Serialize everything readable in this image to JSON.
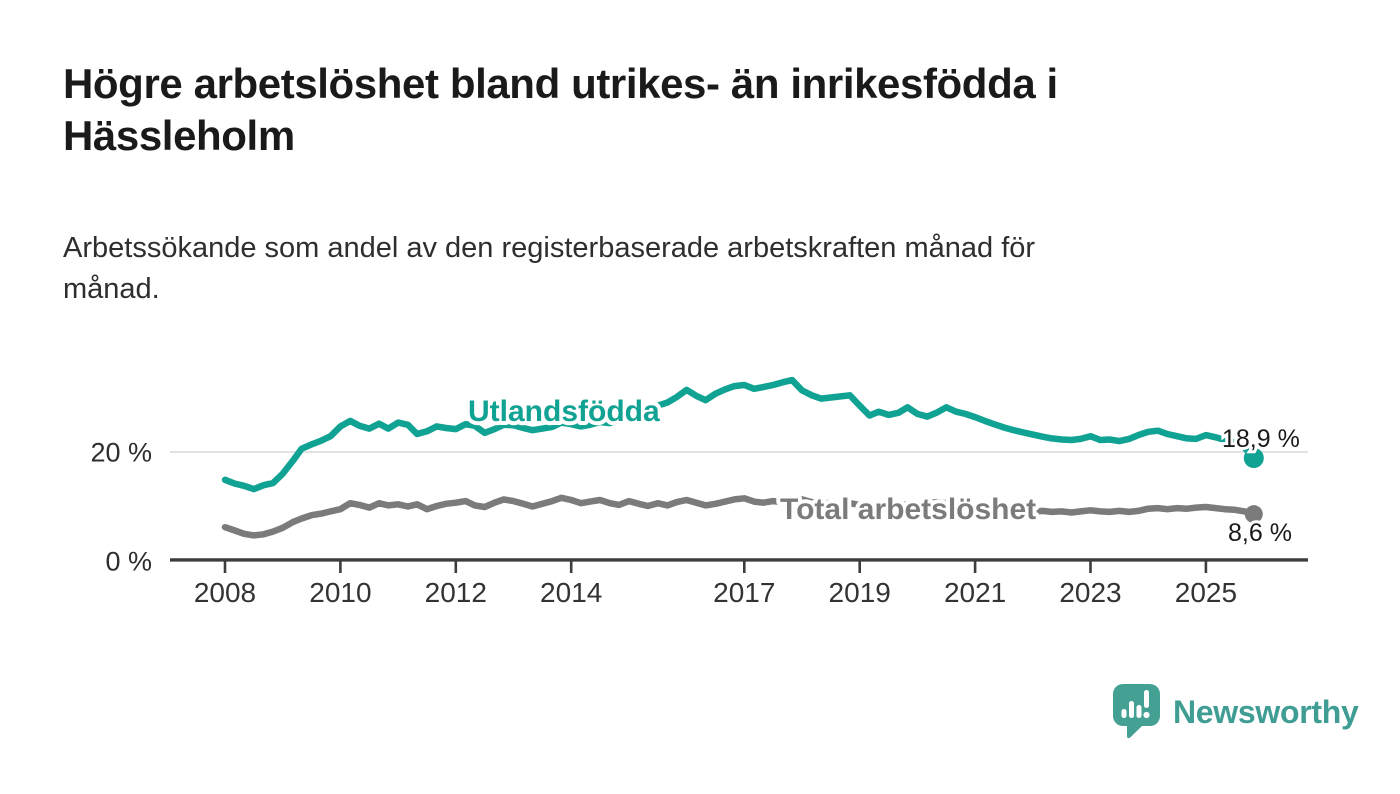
{
  "header": {
    "title": "Högre arbetslöshet bland utrikes- än inrikesfödda i Hässleholm",
    "subtitle": "Arbetssökande som andel av den registerbaserade arbetskraften månad för månad."
  },
  "footer": {
    "brand": "Newsworthy",
    "logo_icon": "bar-chart-speech-bubble-icon",
    "icon_color": "#45a094",
    "text_color": "#3f9d94"
  },
  "colors": {
    "series_foreign_born": "#10a292",
    "series_total": "#7b7b7b",
    "gridline": "#d9d9d9",
    "axis": "#3d3d3d",
    "tick_label": "#333333",
    "value_label": "#1a1a1a"
  },
  "chart_data": {
    "type": "line",
    "title": "Högre arbetslöshet bland utrikes- än inrikesfödda i Hässleholm",
    "subtitle": "Arbetssökande som andel av den registerbaserade arbetskraften månad för månad.",
    "unit": "%",
    "grid": {
      "y_gridlines": [
        20
      ]
    },
    "legend": "inline-series-labels",
    "x": {
      "range": [
        2008,
        2025.9
      ],
      "ticks": [
        2008,
        2010,
        2012,
        2014,
        2017,
        2019,
        2021,
        2023,
        2025
      ]
    },
    "y": {
      "range": [
        0,
        36
      ],
      "ticks": [
        {
          "value": 0,
          "label": "0 %"
        },
        {
          "value": 20,
          "label": "20 %"
        }
      ]
    },
    "series": [
      {
        "id": "utlandsfodda",
        "name": "Utlandsfödda",
        "color": "#10a292",
        "end_label": "18,9 %",
        "points": [
          [
            2008,
            14.9
          ],
          [
            2008.17,
            14.2
          ],
          [
            2008.33,
            13.8
          ],
          [
            2008.5,
            13.2
          ],
          [
            2008.67,
            13.9
          ],
          [
            2008.83,
            14.3
          ],
          [
            2009,
            16
          ],
          [
            2009.17,
            18.3
          ],
          [
            2009.33,
            20.6
          ],
          [
            2009.5,
            21.4
          ],
          [
            2009.67,
            22.1
          ],
          [
            2009.83,
            22.9
          ],
          [
            2010,
            24.7
          ],
          [
            2010.17,
            25.7
          ],
          [
            2010.33,
            24.8
          ],
          [
            2010.5,
            24.3
          ],
          [
            2010.67,
            25.2
          ],
          [
            2010.83,
            24.3
          ],
          [
            2011,
            25.4
          ],
          [
            2011.17,
            25
          ],
          [
            2011.33,
            23.3
          ],
          [
            2011.5,
            23.8
          ],
          [
            2011.67,
            24.7
          ],
          [
            2011.83,
            24.4
          ],
          [
            2012,
            24.2
          ],
          [
            2012.17,
            25.1
          ],
          [
            2012.33,
            24.8
          ],
          [
            2012.5,
            23.5
          ],
          [
            2012.67,
            24.2
          ],
          [
            2012.83,
            25
          ],
          [
            2013,
            24.9
          ],
          [
            2013.17,
            24.4
          ],
          [
            2013.33,
            24
          ],
          [
            2013.5,
            24.3
          ],
          [
            2013.67,
            24.6
          ],
          [
            2013.83,
            25.4
          ],
          [
            2014,
            25.1
          ],
          [
            2014.17,
            24.7
          ],
          [
            2014.33,
            25
          ],
          [
            2014.5,
            25.5
          ],
          [
            2014.67,
            25.3
          ],
          [
            2014.83,
            25.9
          ],
          [
            2015,
            26.6
          ],
          [
            2015.17,
            27.3
          ],
          [
            2015.33,
            27.9
          ],
          [
            2015.5,
            28.5
          ],
          [
            2015.67,
            29.1
          ],
          [
            2015.83,
            30.1
          ],
          [
            2016,
            31.4
          ],
          [
            2016.17,
            30.3
          ],
          [
            2016.33,
            29.5
          ],
          [
            2016.5,
            30.7
          ],
          [
            2016.67,
            31.5
          ],
          [
            2016.83,
            32.1
          ],
          [
            2017,
            32.3
          ],
          [
            2017.17,
            31.6
          ],
          [
            2017.33,
            31.9
          ],
          [
            2017.5,
            32.3
          ],
          [
            2017.67,
            32.8
          ],
          [
            2017.83,
            33.2
          ],
          [
            2018,
            31.3
          ],
          [
            2018.17,
            30.4
          ],
          [
            2018.33,
            29.8
          ],
          [
            2018.5,
            30
          ],
          [
            2018.67,
            30.2
          ],
          [
            2018.83,
            30.4
          ],
          [
            2019,
            28.5
          ],
          [
            2019.17,
            26.7
          ],
          [
            2019.33,
            27.4
          ],
          [
            2019.5,
            26.8
          ],
          [
            2019.67,
            27.2
          ],
          [
            2019.83,
            28.2
          ],
          [
            2020,
            27
          ],
          [
            2020.17,
            26.5
          ],
          [
            2020.33,
            27.2
          ],
          [
            2020.5,
            28.2
          ],
          [
            2020.67,
            27.4
          ],
          [
            2020.83,
            27
          ],
          [
            2021,
            26.4
          ],
          [
            2021.17,
            25.7
          ],
          [
            2021.33,
            25.1
          ],
          [
            2021.5,
            24.5
          ],
          [
            2021.67,
            24
          ],
          [
            2021.83,
            23.6
          ],
          [
            2022,
            23.2
          ],
          [
            2022.17,
            22.8
          ],
          [
            2022.33,
            22.5
          ],
          [
            2022.5,
            22.3
          ],
          [
            2022.67,
            22.2
          ],
          [
            2022.83,
            22.4
          ],
          [
            2023,
            22.9
          ],
          [
            2023.17,
            22.2
          ],
          [
            2023.33,
            22.3
          ],
          [
            2023.5,
            22
          ],
          [
            2023.67,
            22.4
          ],
          [
            2023.83,
            23.1
          ],
          [
            2024,
            23.7
          ],
          [
            2024.17,
            23.9
          ],
          [
            2024.33,
            23.3
          ],
          [
            2024.5,
            22.9
          ],
          [
            2024.67,
            22.5
          ],
          [
            2024.83,
            22.4
          ],
          [
            2025,
            23.1
          ],
          [
            2025.17,
            22.7
          ],
          [
            2025.33,
            22.2
          ],
          [
            2025.5,
            21.7
          ],
          [
            2025.67,
            20.8
          ],
          [
            2025.83,
            18.9
          ]
        ]
      },
      {
        "id": "total-arbetsloshet",
        "name": "Total arbetslöshet",
        "color": "#7b7b7b",
        "end_label": "8,6 %",
        "points": [
          [
            2008,
            6.2
          ],
          [
            2008.17,
            5.6
          ],
          [
            2008.33,
            5
          ],
          [
            2008.5,
            4.7
          ],
          [
            2008.67,
            4.9
          ],
          [
            2008.83,
            5.4
          ],
          [
            2009,
            6.1
          ],
          [
            2009.17,
            7.1
          ],
          [
            2009.33,
            7.8
          ],
          [
            2009.5,
            8.4
          ],
          [
            2009.67,
            8.7
          ],
          [
            2009.83,
            9.1
          ],
          [
            2010,
            9.5
          ],
          [
            2010.17,
            10.6
          ],
          [
            2010.33,
            10.3
          ],
          [
            2010.5,
            9.8
          ],
          [
            2010.67,
            10.6
          ],
          [
            2010.83,
            10.2
          ],
          [
            2011,
            10.4
          ],
          [
            2011.17,
            10
          ],
          [
            2011.33,
            10.4
          ],
          [
            2011.5,
            9.5
          ],
          [
            2011.67,
            10.1
          ],
          [
            2011.83,
            10.5
          ],
          [
            2012,
            10.7
          ],
          [
            2012.17,
            11
          ],
          [
            2012.33,
            10.2
          ],
          [
            2012.5,
            9.9
          ],
          [
            2012.67,
            10.7
          ],
          [
            2012.83,
            11.3
          ],
          [
            2013,
            11
          ],
          [
            2013.17,
            10.5
          ],
          [
            2013.33,
            10
          ],
          [
            2013.5,
            10.5
          ],
          [
            2013.67,
            11
          ],
          [
            2013.83,
            11.6
          ],
          [
            2014,
            11.2
          ],
          [
            2014.17,
            10.6
          ],
          [
            2014.33,
            10.9
          ],
          [
            2014.5,
            11.2
          ],
          [
            2014.67,
            10.6
          ],
          [
            2014.83,
            10.3
          ],
          [
            2015,
            11
          ],
          [
            2015.17,
            10.5
          ],
          [
            2015.33,
            10.1
          ],
          [
            2015.5,
            10.6
          ],
          [
            2015.67,
            10.2
          ],
          [
            2015.83,
            10.8
          ],
          [
            2016,
            11.2
          ],
          [
            2016.17,
            10.7
          ],
          [
            2016.33,
            10.2
          ],
          [
            2016.5,
            10.5
          ],
          [
            2016.67,
            10.9
          ],
          [
            2016.83,
            11.3
          ],
          [
            2017,
            11.5
          ],
          [
            2017.17,
            10.9
          ],
          [
            2017.33,
            10.7
          ],
          [
            2017.5,
            11
          ],
          [
            2017.67,
            10.8
          ],
          [
            2017.83,
            11.1
          ],
          [
            2018,
            11.3
          ],
          [
            2018.17,
            10.8
          ],
          [
            2018.33,
            10.5
          ],
          [
            2018.5,
            10.7
          ],
          [
            2018.67,
            10.4
          ],
          [
            2018.83,
            10.6
          ],
          [
            2019,
            10.3
          ],
          [
            2019.17,
            10
          ],
          [
            2019.33,
            10.2
          ],
          [
            2019.5,
            9.9
          ],
          [
            2019.67,
            10.1
          ],
          [
            2019.83,
            10.4
          ],
          [
            2020,
            10.2
          ],
          [
            2020.17,
            10.5
          ],
          [
            2020.33,
            10.8
          ],
          [
            2020.5,
            10.6
          ],
          [
            2020.67,
            10.3
          ],
          [
            2020.83,
            10
          ],
          [
            2021,
            9.8
          ],
          [
            2021.17,
            9.6
          ],
          [
            2021.33,
            9.4
          ],
          [
            2021.5,
            9.2
          ],
          [
            2021.67,
            9
          ],
          [
            2021.83,
            9.1
          ],
          [
            2022,
            9
          ],
          [
            2022.17,
            9.2
          ],
          [
            2022.33,
            9
          ],
          [
            2022.5,
            9.1
          ],
          [
            2022.67,
            8.9
          ],
          [
            2022.83,
            9.1
          ],
          [
            2023,
            9.3
          ],
          [
            2023.17,
            9.1
          ],
          [
            2023.33,
            9
          ],
          [
            2023.5,
            9.2
          ],
          [
            2023.67,
            9
          ],
          [
            2023.83,
            9.2
          ],
          [
            2024,
            9.6
          ],
          [
            2024.17,
            9.7
          ],
          [
            2024.33,
            9.5
          ],
          [
            2024.5,
            9.7
          ],
          [
            2024.67,
            9.6
          ],
          [
            2024.83,
            9.8
          ],
          [
            2025,
            9.9
          ],
          [
            2025.17,
            9.7
          ],
          [
            2025.33,
            9.5
          ],
          [
            2025.5,
            9.4
          ],
          [
            2025.67,
            9.1
          ],
          [
            2025.83,
            8.6
          ]
        ]
      }
    ]
  }
}
